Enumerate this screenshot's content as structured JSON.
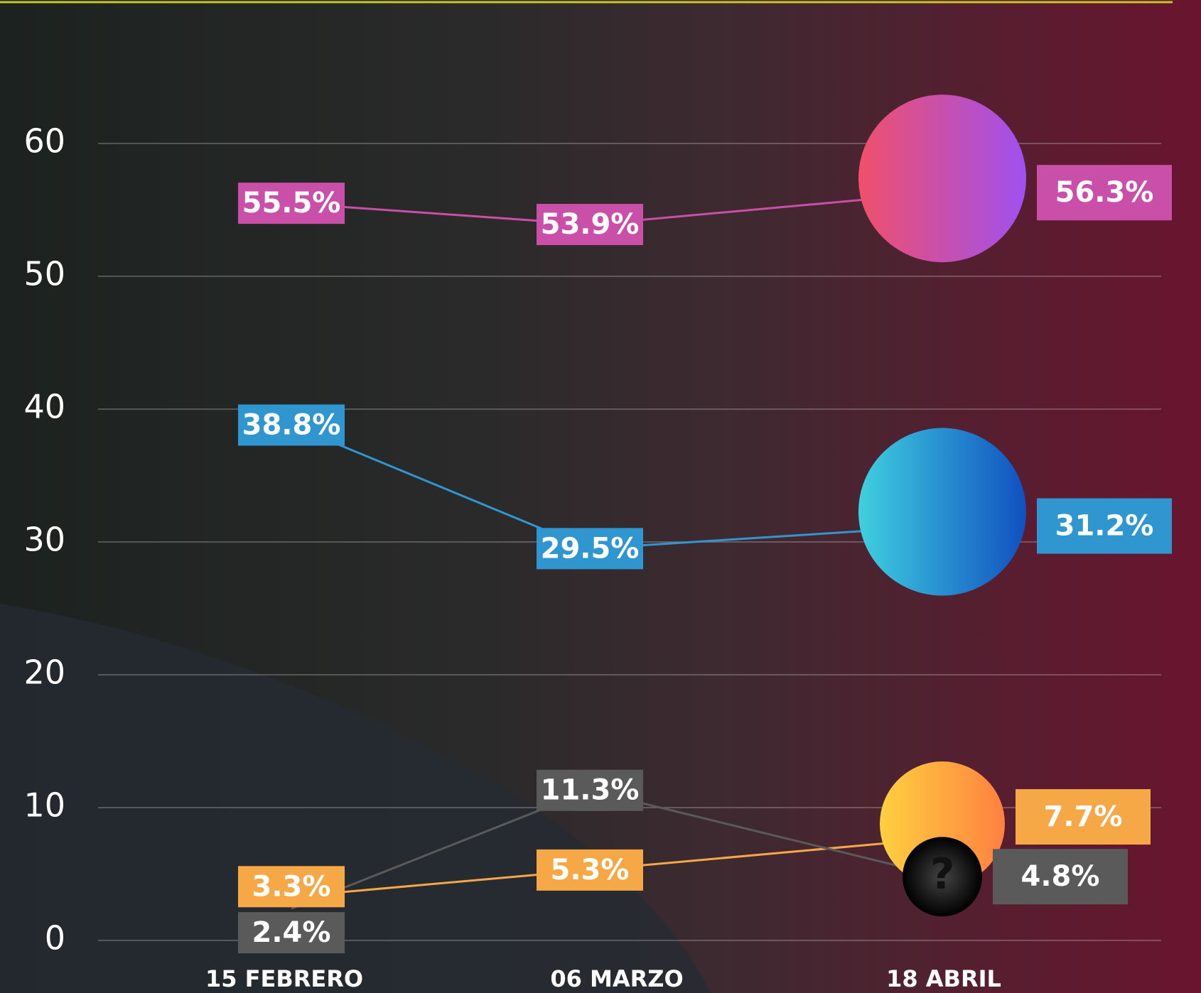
{
  "chart_data": {
    "type": "line",
    "categories": [
      "15 FEBRERO",
      "06 MARZO",
      "18 ABRIL"
    ],
    "series": [
      {
        "color": "#c94fa8",
        "values": [
          55.5,
          53.9,
          56.3
        ],
        "value_labels": [
          "55.5%",
          "53.9%",
          "56.3%"
        ]
      },
      {
        "color": "#2f96d0",
        "values": [
          38.8,
          29.5,
          31.2
        ],
        "value_labels": [
          "38.8%",
          "29.5%",
          "31.2%"
        ]
      },
      {
        "color": "#f5a845",
        "values": [
          3.3,
          5.3,
          7.7
        ],
        "value_labels": [
          "3.3%",
          "5.3%",
          "7.7%"
        ]
      },
      {
        "color": "#5a5a5a",
        "values": [
          2.4,
          11.3,
          4.8
        ],
        "value_labels": [
          "2.4%",
          "11.3%",
          "4.8%"
        ]
      }
    ],
    "ylim": [
      0,
      60
    ],
    "yticks": [
      0,
      10,
      20,
      30,
      40,
      50,
      60
    ],
    "grid": true
  }
}
